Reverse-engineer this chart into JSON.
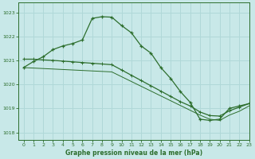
{
  "title": "Graphe pression niveau de la mer (hPa)",
  "bg_color": "#c8e8e8",
  "grid_color": "#b0d8d8",
  "line_color": "#2d6e2d",
  "xlim": [
    -0.5,
    23
  ],
  "ylim": [
    1017.7,
    1023.4
  ],
  "yticks": [
    1018,
    1019,
    1020,
    1021,
    1022,
    1023
  ],
  "xticks": [
    0,
    1,
    2,
    3,
    4,
    5,
    6,
    7,
    8,
    9,
    10,
    11,
    12,
    13,
    14,
    15,
    16,
    17,
    18,
    19,
    20,
    21,
    22,
    23
  ],
  "line1_x": [
    0,
    1,
    2,
    3,
    4,
    5,
    6,
    7,
    8,
    9,
    10,
    11,
    12,
    13,
    14,
    15,
    16,
    17,
    18,
    19,
    20,
    21,
    22,
    23
  ],
  "line1_y": [
    1020.7,
    1020.95,
    1021.15,
    1021.45,
    1021.6,
    1021.7,
    1021.85,
    1022.75,
    1022.82,
    1022.8,
    1022.45,
    1022.15,
    1021.6,
    1021.3,
    1020.7,
    1020.25,
    1019.7,
    1019.25,
    1018.55,
    1018.5,
    1018.55,
    1019.0,
    1019.1,
    1019.2
  ],
  "line2_x": [
    0,
    1,
    2,
    3,
    4,
    5,
    6,
    7,
    8,
    9,
    10,
    11,
    12,
    13,
    14,
    15,
    16,
    17,
    18,
    19,
    20,
    21,
    22,
    23
  ],
  "line2_y": [
    1021.05,
    1021.05,
    1021.02,
    1021.0,
    1020.97,
    1020.94,
    1020.91,
    1020.88,
    1020.85,
    1020.82,
    1020.6,
    1020.38,
    1020.16,
    1019.94,
    1019.72,
    1019.5,
    1019.28,
    1019.1,
    1018.85,
    1018.7,
    1018.68,
    1018.9,
    1019.05,
    1019.2
  ],
  "line3_x": [
    0,
    1,
    2,
    3,
    4,
    5,
    6,
    7,
    8,
    9,
    10,
    11,
    12,
    13,
    14,
    15,
    16,
    17,
    18,
    19,
    20,
    21,
    22,
    23
  ],
  "line3_y": [
    1020.7,
    1020.68,
    1020.66,
    1020.64,
    1020.62,
    1020.6,
    1020.58,
    1020.56,
    1020.54,
    1020.52,
    1020.32,
    1020.12,
    1019.92,
    1019.72,
    1019.52,
    1019.32,
    1019.12,
    1018.92,
    1018.72,
    1018.55,
    1018.5,
    1018.72,
    1018.88,
    1019.1
  ]
}
